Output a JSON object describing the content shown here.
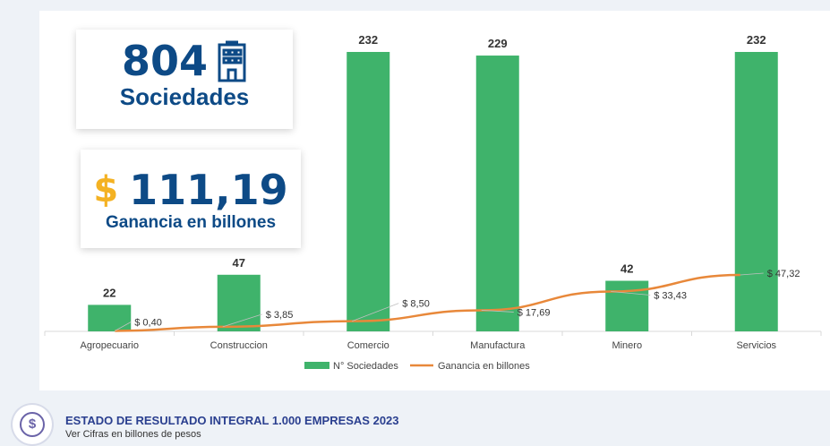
{
  "kpi_companies": {
    "value": "804",
    "label": "Sociedades",
    "icon": "building-icon"
  },
  "kpi_profit": {
    "symbol": "$",
    "value": "111,19",
    "label": "Ganancia en billones"
  },
  "chart_data": {
    "type": "bar",
    "categories": [
      "Agropecuario",
      "Construccion",
      "Comercio",
      "Manufactura",
      "Minero",
      "Servicios"
    ],
    "series": [
      {
        "name": "N° Sociedades",
        "type": "bar",
        "color": "#3fb36b",
        "values": [
          22,
          47,
          232,
          229,
          42,
          232
        ],
        "labels": [
          "22",
          "47",
          "232",
          "229",
          "42",
          "232"
        ]
      },
      {
        "name": "Ganancia en billones",
        "type": "line",
        "color": "#e8883a",
        "values": [
          0.4,
          3.85,
          8.5,
          17.69,
          33.43,
          47.32
        ],
        "labels": [
          "$ 0,40",
          "$ 3,85",
          "$ 8,50",
          "$ 17,69",
          "$ 33,43",
          "$ 47,32"
        ]
      }
    ],
    "ylim": [
      0,
      232
    ],
    "ylim_line": [
      0,
      47.32
    ],
    "legend": "bottom-center",
    "grid": false
  },
  "footer": {
    "title": "ESTADO DE RESULTADO INTEGRAL  1.000 EMPRESAS 2023",
    "subtitle": "Ver Cifras en billones de pesos",
    "icon": "dollar-coin-icon"
  }
}
